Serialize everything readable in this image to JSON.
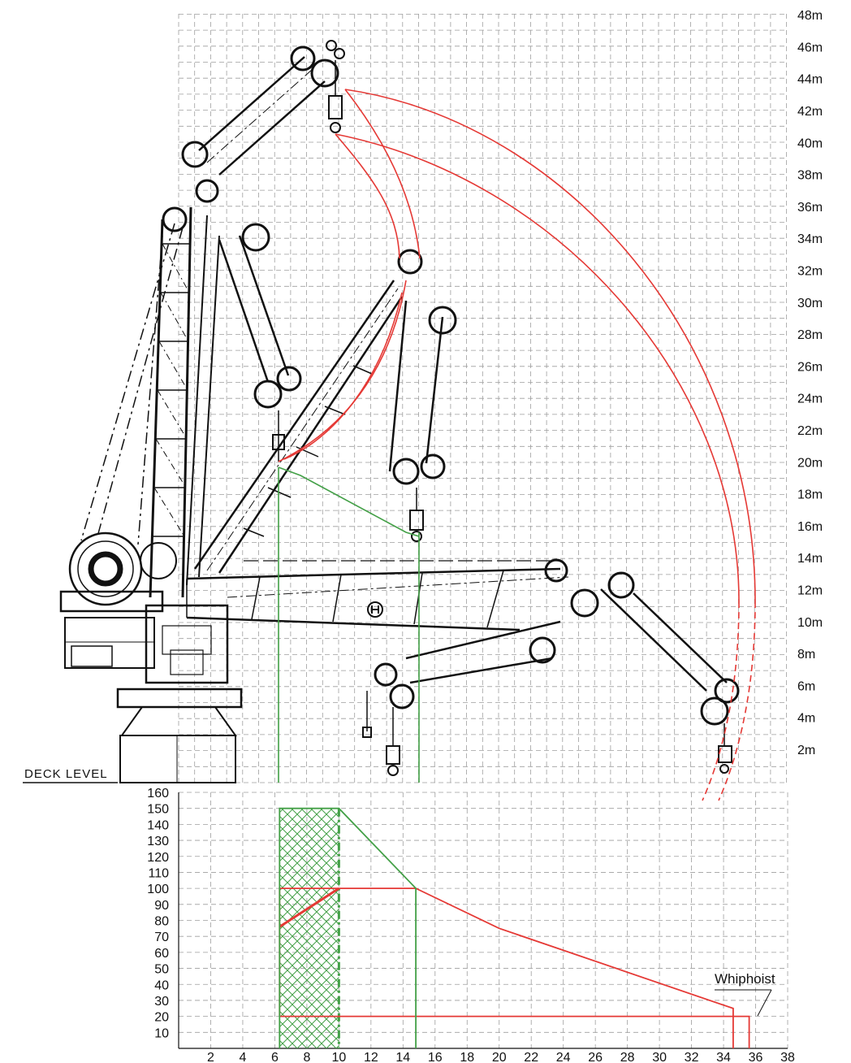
{
  "diagram": {
    "deck_label": "DECK LEVEL",
    "height_axis": {
      "unit": "m",
      "ticks": [
        "2m",
        "4m",
        "6m",
        "8m",
        "10m",
        "12m",
        "14m",
        "16m",
        "18m",
        "20m",
        "22m",
        "24m",
        "26m",
        "28m",
        "30m",
        "32m",
        "34m",
        "36m",
        "38m",
        "40m",
        "42m",
        "44m",
        "46m",
        "48m"
      ]
    },
    "colors": {
      "swl_curve": "#e53935",
      "aux_curve": "#43a047",
      "structure": "#111111",
      "grid": "#9e9e9e"
    }
  },
  "chart_data": {
    "type": "line",
    "x": {
      "ticks": [
        2,
        4,
        6,
        8,
        10,
        12,
        14,
        16,
        18,
        20,
        22,
        24,
        26,
        28,
        30,
        32,
        34,
        36,
        38
      ],
      "range": [
        0,
        38
      ]
    },
    "y": {
      "ticks": [
        10,
        20,
        30,
        40,
        50,
        60,
        70,
        80,
        90,
        100,
        110,
        120,
        130,
        140,
        150,
        160
      ],
      "range": [
        0,
        160
      ]
    },
    "series": [
      {
        "color": "#e53935",
        "points": [
          [
            6.3,
            20
          ],
          [
            6.3,
            100
          ],
          [
            14.8,
            100
          ],
          [
            20,
            75
          ],
          [
            34.6,
            25
          ],
          [
            34.6,
            0
          ]
        ]
      },
      {
        "color": "#e53935",
        "points": [
          [
            6.3,
            20
          ],
          [
            35.6,
            20
          ],
          [
            35.6,
            0
          ]
        ]
      },
      {
        "color": "#43a047",
        "points": [
          [
            6.3,
            0
          ],
          [
            6.3,
            150
          ],
          [
            10,
            150
          ],
          [
            14.8,
            100
          ],
          [
            14.8,
            0
          ]
        ]
      }
    ],
    "annotations": [
      {
        "text": "Whiphoist"
      }
    ],
    "grid": true
  }
}
